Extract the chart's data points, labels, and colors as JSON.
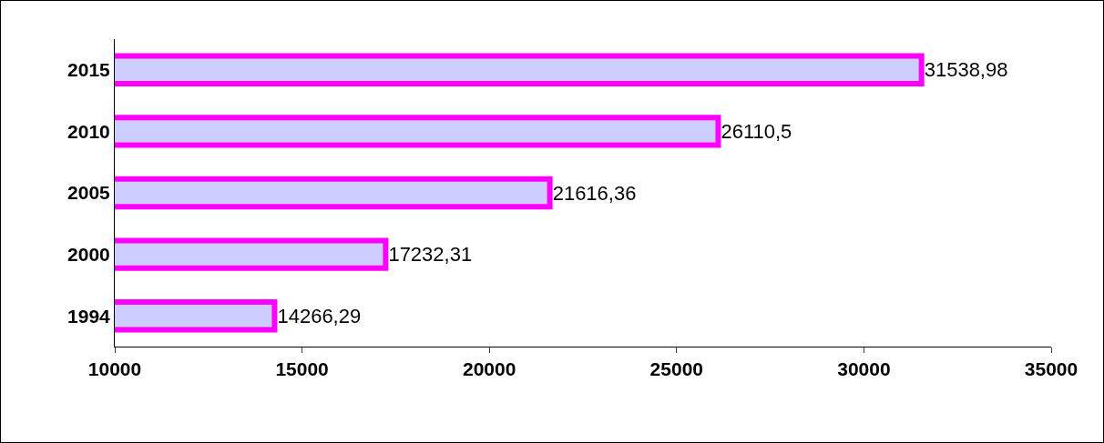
{
  "chart_data": {
    "type": "bar",
    "orientation": "horizontal",
    "categories": [
      "2015",
      "2010",
      "2005",
      "2000",
      "1994"
    ],
    "values": [
      31538.98,
      26110.5,
      21616.36,
      17232.31,
      14266.29
    ],
    "value_labels": [
      "31538,98",
      "26110,5",
      "21616,36",
      "17232,31",
      "14266,29"
    ],
    "color": "#ccccff",
    "xlim": [
      10000,
      35000
    ],
    "xticks": [
      10000,
      15000,
      20000,
      25000,
      30000,
      35000
    ],
    "grid": false
  }
}
